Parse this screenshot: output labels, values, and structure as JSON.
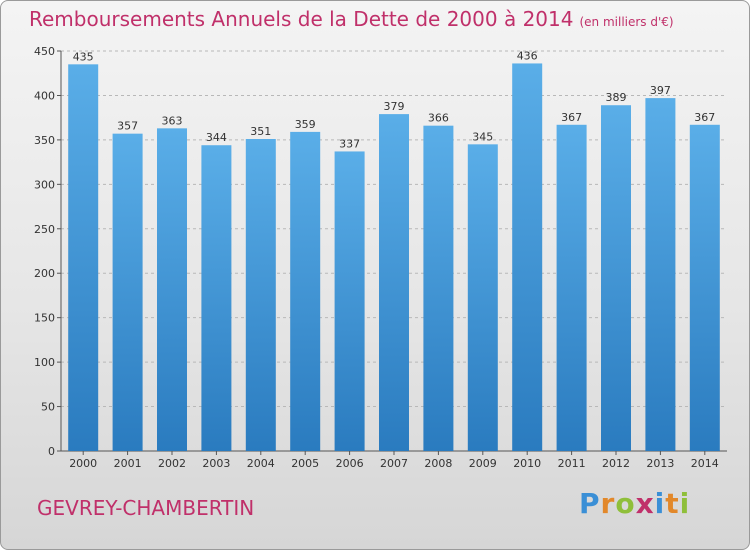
{
  "title": "Remboursements Annuels de la Dette de 2000 à 2014",
  "unit": "(en milliers d'€)",
  "commune": "GEVREY-CHAMBERTIN",
  "logo": {
    "letters": [
      "P",
      "r",
      "o",
      "x",
      "i",
      "t",
      "i"
    ]
  },
  "colors": {
    "title": "#c0306a",
    "bar_top": "#5aaee8",
    "bar_bottom": "#2a7bbf"
  },
  "chart_data": {
    "type": "bar",
    "title": "Remboursements Annuels de la Dette de 2000 à 2014",
    "xlabel": "",
    "ylabel": "",
    "categories": [
      "2000",
      "2001",
      "2002",
      "2003",
      "2004",
      "2005",
      "2006",
      "2007",
      "2008",
      "2009",
      "2010",
      "2011",
      "2012",
      "2013",
      "2014"
    ],
    "values": [
      435,
      357,
      363,
      344,
      351,
      359,
      337,
      379,
      366,
      345,
      436,
      367,
      389,
      397,
      367
    ],
    "ylim": [
      0,
      450
    ],
    "yticks": [
      0,
      50,
      100,
      150,
      200,
      250,
      300,
      350,
      400,
      450
    ],
    "grid": true,
    "legend": "none"
  }
}
